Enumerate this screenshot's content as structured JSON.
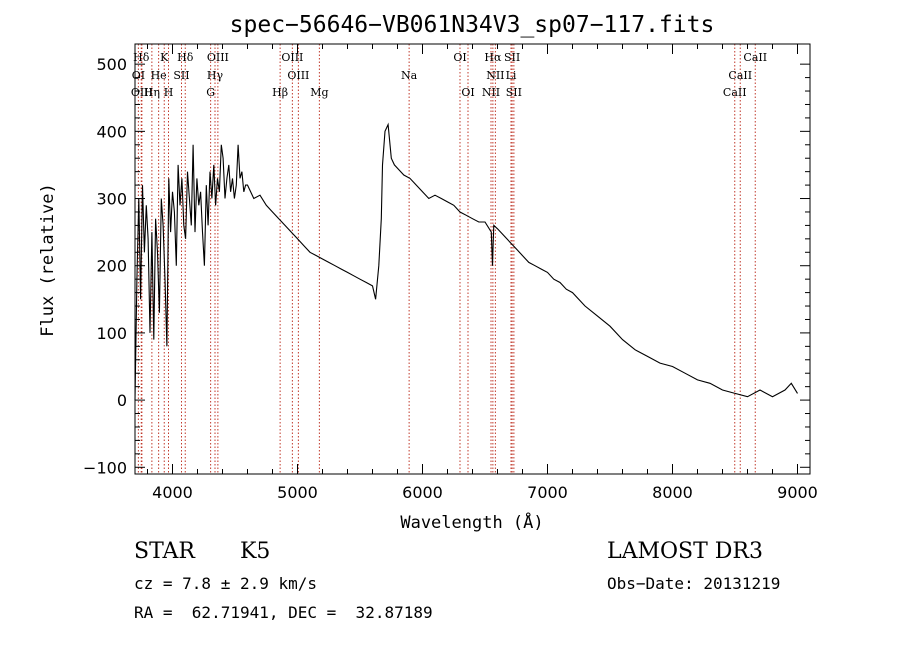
{
  "chart_data": {
    "type": "line",
    "title": "spec−56646−VB061N34V3_sp07−117.fits",
    "xlabel": "Wavelength (Å)",
    "ylabel": "Flux (relative)",
    "xlim": [
      3700,
      9100
    ],
    "ylim": [
      -110,
      530
    ],
    "xticks": [
      4000,
      5000,
      6000,
      7000,
      8000,
      9000
    ],
    "xtick_labels": [
      "4000",
      "5000",
      "6000",
      "7000",
      "8000",
      "9000"
    ],
    "yticks": [
      -100,
      0,
      100,
      200,
      300,
      400,
      500
    ],
    "ytick_labels": [
      "−100",
      "0",
      "100",
      "200",
      "300",
      "400",
      "500"
    ],
    "series": [
      {
        "name": "flux",
        "x": [
          3700,
          3715,
          3730,
          3745,
          3760,
          3775,
          3790,
          3805,
          3820,
          3835,
          3850,
          3865,
          3880,
          3895,
          3910,
          3925,
          3940,
          3955,
          3970,
          3985,
          4000,
          4015,
          4030,
          4045,
          4060,
          4075,
          4090,
          4105,
          4120,
          4135,
          4150,
          4165,
          4180,
          4195,
          4210,
          4225,
          4240,
          4255,
          4270,
          4285,
          4300,
          4315,
          4330,
          4345,
          4360,
          4375,
          4390,
          4405,
          4420,
          4435,
          4450,
          4465,
          4480,
          4495,
          4510,
          4525,
          4540,
          4555,
          4570,
          4585,
          4600,
          4650,
          4700,
          4750,
          4800,
          4850,
          4900,
          4950,
          5000,
          5050,
          5100,
          5150,
          5200,
          5250,
          5300,
          5350,
          5400,
          5450,
          5500,
          5550,
          5600,
          5625,
          5650,
          5670,
          5680,
          5700,
          5725,
          5750,
          5775,
          5800,
          5850,
          5900,
          5950,
          6000,
          6050,
          6100,
          6150,
          6200,
          6250,
          6300,
          6350,
          6400,
          6450,
          6500,
          6550,
          6560,
          6565,
          6570,
          6600,
          6650,
          6700,
          6750,
          6800,
          6850,
          6900,
          6950,
          7000,
          7050,
          7100,
          7150,
          7200,
          7300,
          7400,
          7500,
          7600,
          7700,
          7800,
          7900,
          8000,
          8100,
          8200,
          8300,
          8400,
          8500,
          8600,
          8700,
          8800,
          8900,
          8950,
          9000
        ],
        "values": [
          0,
          180,
          300,
          150,
          320,
          220,
          290,
          240,
          100,
          250,
          90,
          270,
          220,
          130,
          300,
          260,
          180,
          80,
          330,
          250,
          310,
          280,
          200,
          350,
          290,
          330,
          260,
          240,
          340,
          300,
          260,
          380,
          250,
          330,
          290,
          310,
          250,
          200,
          320,
          260,
          340,
          300,
          350,
          290,
          330,
          310,
          380,
          360,
          300,
          330,
          350,
          310,
          330,
          300,
          320,
          380,
          330,
          340,
          310,
          320,
          320,
          300,
          305,
          290,
          280,
          270,
          260,
          250,
          240,
          230,
          220,
          215,
          210,
          205,
          200,
          195,
          190,
          185,
          180,
          175,
          170,
          150,
          200,
          270,
          350,
          400,
          410,
          360,
          350,
          345,
          335,
          330,
          320,
          310,
          300,
          305,
          300,
          295,
          290,
          280,
          275,
          270,
          265,
          265,
          250,
          200,
          230,
          260,
          255,
          245,
          235,
          225,
          215,
          205,
          200,
          195,
          190,
          180,
          175,
          165,
          160,
          140,
          125,
          110,
          90,
          75,
          65,
          55,
          50,
          40,
          30,
          25,
          15,
          10,
          5,
          15,
          5,
          15,
          25,
          10
        ]
      }
    ],
    "lines": [
      {
        "label": "Hδ",
        "lambda": 3750,
        "row": 0
      },
      {
        "label": "K",
        "lambda": 3934,
        "row": 0
      },
      {
        "label": "Hδ",
        "lambda": 4102,
        "row": 0
      },
      {
        "label": "OIII",
        "lambda": 4363,
        "row": 0
      },
      {
        "label": "OIII",
        "lambda": 4959,
        "row": 0
      },
      {
        "label": "OI",
        "lambda": 6300,
        "row": 0
      },
      {
        "label": "Hα",
        "lambda": 6563,
        "row": 0
      },
      {
        "label": "SII",
        "lambda": 6717,
        "row": 0
      },
      {
        "label": "CaII",
        "lambda": 8662,
        "row": 0
      },
      {
        "label": "OI",
        "lambda": 3727,
        "row": 1
      },
      {
        "label": "He",
        "lambda": 3889,
        "row": 1
      },
      {
        "label": "SII",
        "lambda": 4072,
        "row": 1
      },
      {
        "label": "Hγ",
        "lambda": 4340,
        "row": 1
      },
      {
        "label": "OIII",
        "lambda": 5007,
        "row": 1
      },
      {
        "label": "Na",
        "lambda": 5893,
        "row": 1
      },
      {
        "label": "NII",
        "lambda": 6583,
        "row": 1
      },
      {
        "label": "Li",
        "lambda": 6708,
        "row": 1
      },
      {
        "label": "CaII",
        "lambda": 8542,
        "row": 1
      },
      {
        "label": "OIII",
        "lambda": 3755,
        "row": 2
      },
      {
        "label": "Hη",
        "lambda": 3835,
        "row": 2
      },
      {
        "label": "H",
        "lambda": 3968,
        "row": 2
      },
      {
        "label": "G",
        "lambda": 4305,
        "row": 2
      },
      {
        "label": "Hβ",
        "lambda": 4861,
        "row": 2
      },
      {
        "label": "Mg",
        "lambda": 5175,
        "row": 2
      },
      {
        "label": "OI",
        "lambda": 6364,
        "row": 2
      },
      {
        "label": "NII",
        "lambda": 6548,
        "row": 2
      },
      {
        "label": "SII",
        "lambda": 6731,
        "row": 2
      },
      {
        "label": "CaII",
        "lambda": 8498,
        "row": 2
      }
    ],
    "line_color": "#c0392b",
    "spectrum_color": "#000000"
  },
  "info": {
    "class_label": "STAR",
    "subclass": "K5",
    "survey": "LAMOST DR3",
    "cz": "cz = 7.8 ± 2.9 km/s",
    "obs_date": "Obs−Date: 20131219",
    "coords": "RA =  62.71941, DEC =  32.87189"
  }
}
